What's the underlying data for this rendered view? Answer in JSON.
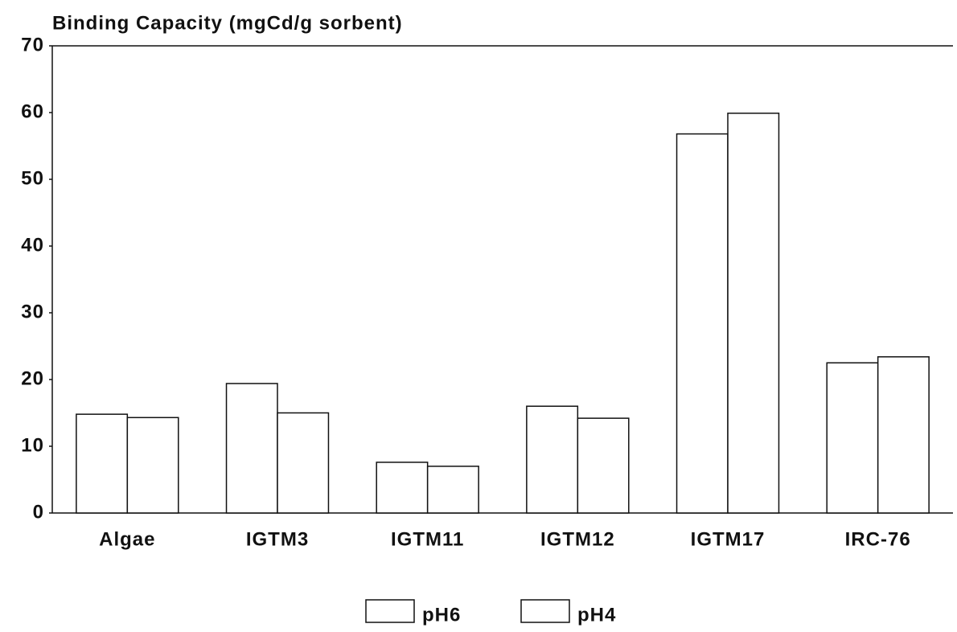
{
  "chart_data": {
    "type": "bar",
    "title": "Binding Capacity (mgCd/g sorbent)",
    "categories": [
      "Algae",
      "IGTM3",
      "IGTM11",
      "IGTM12",
      "IGTM17",
      "IRC-76"
    ],
    "series": [
      {
        "name": "pH6",
        "color": "#ffffff",
        "values": [
          14.8,
          19.4,
          7.6,
          16.0,
          56.8,
          22.5
        ]
      },
      {
        "name": "pH4",
        "color": "#ffffff",
        "values": [
          14.3,
          15.0,
          7.0,
          14.2,
          59.9,
          23.4
        ]
      }
    ],
    "ylim": [
      0,
      70
    ],
    "yticks": [
      0,
      10,
      20,
      30,
      40,
      50,
      60,
      70
    ],
    "legend": "bottom"
  }
}
